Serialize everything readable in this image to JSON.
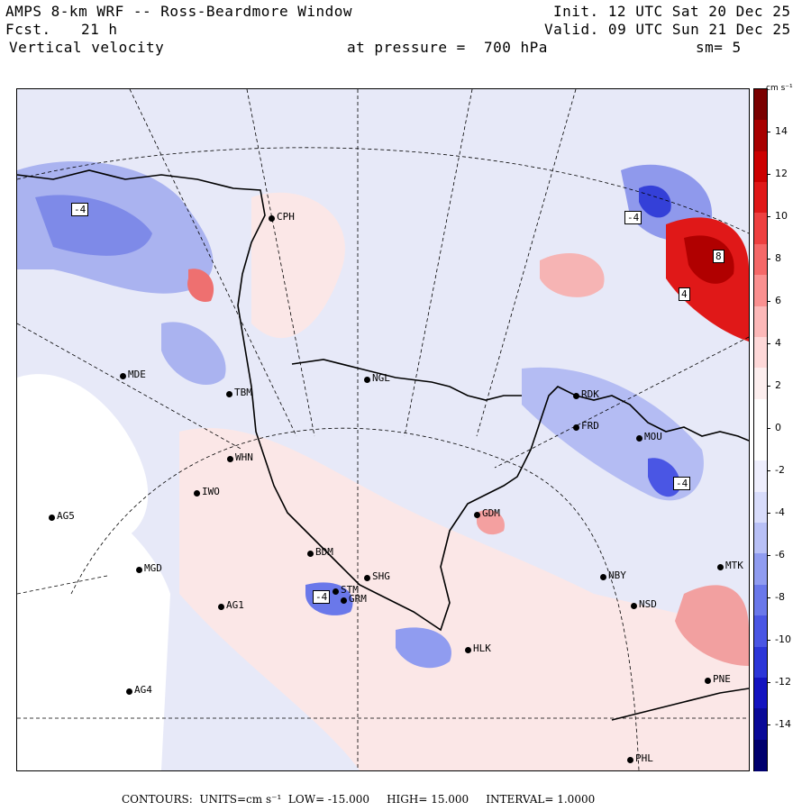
{
  "header": {
    "model": "AMPS 8-km WRF -- Ross-Beardmore Window",
    "forecast_label": "Fcst.",
    "forecast_hours": "21 h",
    "field": "Vertical velocity",
    "init": "Init. 12 UTC Sat 20 Dec 25",
    "valid": "Valid. 09 UTC Sun 21 Dec 25",
    "pressure": "at pressure =  700 hPa",
    "smoothing": "sm= 5"
  },
  "colorbar": {
    "units": "cm s⁻¹",
    "labels": [
      "14",
      "12",
      "10",
      "8",
      "6",
      "4",
      "2",
      "0",
      "-2",
      "-4",
      "-6",
      "-8",
      "-10",
      "-12",
      "-14"
    ],
    "colors": [
      "#7a0000",
      "#a80000",
      "#cc0000",
      "#e01818",
      "#ee4040",
      "#f56868",
      "#fa9090",
      "#fcb8b8",
      "#fed8d8",
      "#fdeeee",
      "#ffffff",
      "#ffffff",
      "#eeeefd",
      "#d8dcfb",
      "#b8c0f6",
      "#909cf0",
      "#6a78ea",
      "#4a56e4",
      "#2c36d8",
      "#1414c0",
      "#0a0a98",
      "#00006e"
    ]
  },
  "footer": {
    "contours_label": "CONTOURS:",
    "units": "UNITS=cm s⁻¹",
    "low": "LOW= -15.000",
    "high": "HIGH= 15.000",
    "interval": "INTERVAL= 1.0000"
  },
  "stations": [
    {
      "id": "CPH",
      "label": "CPH"
    },
    {
      "id": "NGL",
      "label": "NGL"
    },
    {
      "id": "MDE",
      "label": "MDE"
    },
    {
      "id": "TBM",
      "label": "TBM"
    },
    {
      "id": "WHN",
      "label": "WHN"
    },
    {
      "id": "IWO",
      "label": "IWO"
    },
    {
      "id": "AG5",
      "label": "AG5"
    },
    {
      "id": "MGD",
      "label": "MGD"
    },
    {
      "id": "AG1",
      "label": "AG1"
    },
    {
      "id": "AG4",
      "label": "AG4"
    },
    {
      "id": "BDM",
      "label": "BDM"
    },
    {
      "id": "SHG",
      "label": "SHG"
    },
    {
      "id": "STM",
      "label": "STM"
    },
    {
      "id": "GRM",
      "label": "GRM"
    },
    {
      "id": "GDM",
      "label": "GDM"
    },
    {
      "id": "HLK",
      "label": "HLK"
    },
    {
      "id": "NBY",
      "label": "NBY"
    },
    {
      "id": "NSD",
      "label": "NSD"
    },
    {
      "id": "MTK",
      "label": "MTK"
    },
    {
      "id": "PNE",
      "label": "PNE"
    },
    {
      "id": "PHL",
      "label": "PHL"
    },
    {
      "id": "FRD",
      "label": "FRD"
    },
    {
      "id": "RDK",
      "label": "RDK"
    },
    {
      "id": "MOU",
      "label": "MOU"
    }
  ],
  "contour_labels": {
    "nw": "-4",
    "ne_low": "-4",
    "ne_high_a": "8",
    "ne_high_b": "4",
    "east": "-4",
    "south": "-4"
  }
}
